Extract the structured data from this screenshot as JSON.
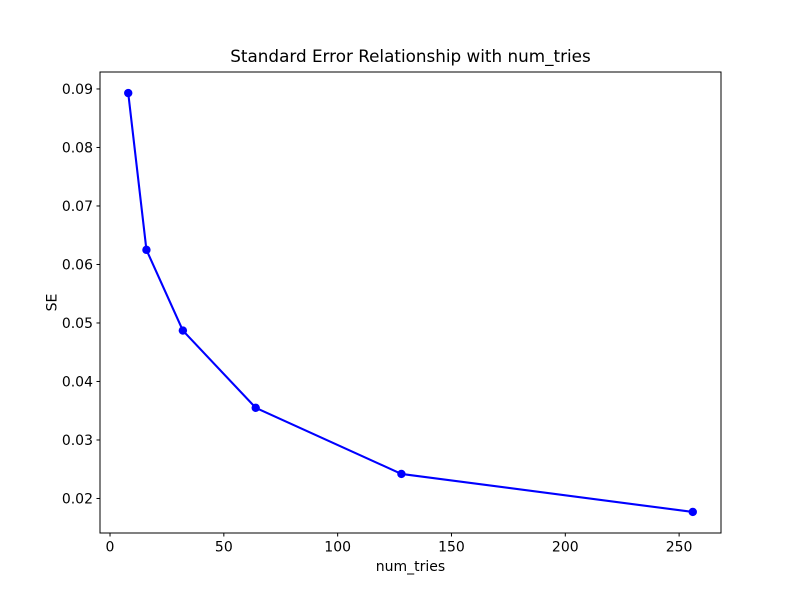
{
  "figure": {
    "background": "#ffffff"
  },
  "chart_data": {
    "type": "line",
    "title": "Standard Error Relationship with num_tries",
    "xlabel": "num_tries",
    "ylabel": "SE",
    "x": [
      8,
      16,
      32,
      64,
      128,
      256
    ],
    "y": [
      0.0893,
      0.0625,
      0.0487,
      0.0355,
      0.0242,
      0.0177
    ],
    "series": [
      {
        "name": "SE",
        "x": [
          8,
          16,
          32,
          64,
          128,
          256
        ],
        "values": [
          0.0893,
          0.0625,
          0.0487,
          0.0355,
          0.0242,
          0.0177
        ]
      }
    ],
    "xticks": [
      0,
      50,
      100,
      150,
      200,
      250
    ],
    "yticks": [
      0.02,
      0.03,
      0.04,
      0.05,
      0.06,
      0.07,
      0.08,
      0.09
    ],
    "ytick_labels": [
      "0.02",
      "0.03",
      "0.04",
      "0.05",
      "0.06",
      "0.07",
      "0.08",
      "0.09"
    ],
    "xlim": [
      -4.4,
      268.4
    ],
    "ylim": [
      0.0141,
      0.0929
    ],
    "line_color": "#0000ff",
    "marker": "o",
    "grid": false,
    "legend_position": "none"
  }
}
